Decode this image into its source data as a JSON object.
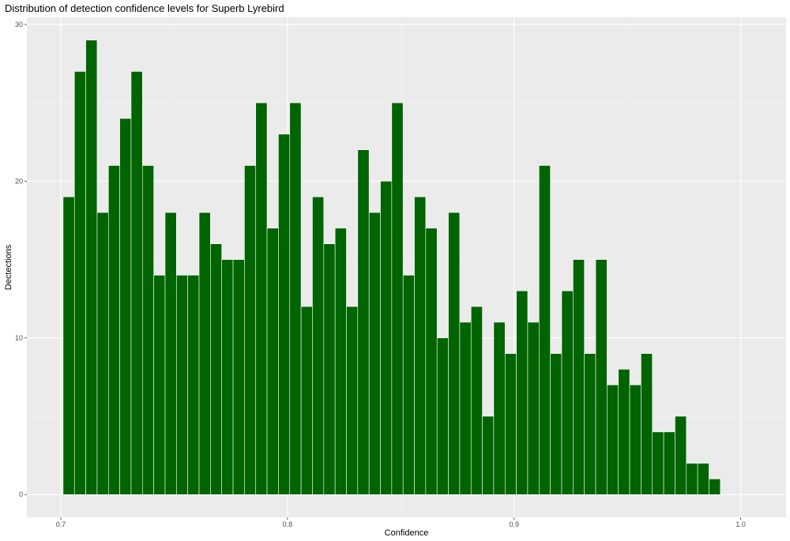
{
  "chart_data": {
    "type": "bar",
    "title": "Distribution of detection confidence levels for Superb Lyrebird",
    "xlabel": "Confidence",
    "ylabel": "Dectections",
    "x": [
      0.7035,
      0.7085,
      0.7135,
      0.7185,
      0.7235,
      0.7285,
      0.7335,
      0.7385,
      0.7435,
      0.7485,
      0.7535,
      0.7585,
      0.7635,
      0.7685,
      0.7735,
      0.7785,
      0.7835,
      0.7885,
      0.7935,
      0.7985,
      0.8035,
      0.8085,
      0.8135,
      0.8185,
      0.8235,
      0.8285,
      0.8335,
      0.8385,
      0.8435,
      0.8485,
      0.8535,
      0.8585,
      0.8635,
      0.8685,
      0.8735,
      0.8785,
      0.8835,
      0.8885,
      0.8935,
      0.8985,
      0.9035,
      0.9085,
      0.9135,
      0.9185,
      0.9235,
      0.9285,
      0.9335,
      0.9385,
      0.9435,
      0.9485,
      0.9535,
      0.9585,
      0.9635,
      0.9685,
      0.9735,
      0.9785,
      0.9835,
      0.9885
    ],
    "values": [
      19,
      27,
      29,
      18,
      21,
      24,
      27,
      21,
      14,
      18,
      14,
      14,
      18,
      16,
      15,
      15,
      21,
      25,
      17,
      23,
      25,
      12,
      19,
      16,
      17,
      12,
      22,
      18,
      20,
      25,
      14,
      19,
      17,
      10,
      18,
      11,
      12,
      5,
      11,
      9,
      13,
      11,
      21,
      9,
      13,
      15,
      9,
      15,
      7,
      8,
      7,
      9,
      4,
      4,
      5,
      2,
      2,
      1
    ],
    "bin_width": 0.005,
    "xlim": [
      0.685,
      1.02
    ],
    "ylim": [
      -1.45,
      30.45
    ],
    "xticks": [
      0.7,
      0.8,
      0.9,
      1.0
    ],
    "xtick_labels": [
      "0.7",
      "0.8",
      "0.9",
      "1.0"
    ],
    "yticks": [
      0,
      10,
      20,
      30
    ],
    "ytick_labels": [
      "0",
      "10",
      "20",
      "30"
    ],
    "grid": true,
    "legend": "none",
    "colors": {
      "bar_fill": "#006400",
      "bar_outline": "#ffffff",
      "panel_background": "#ebebeb",
      "grid_major": "#ffffff",
      "grid_minor": "#f5f5f5",
      "tick_label": "#4d4d4d"
    }
  }
}
